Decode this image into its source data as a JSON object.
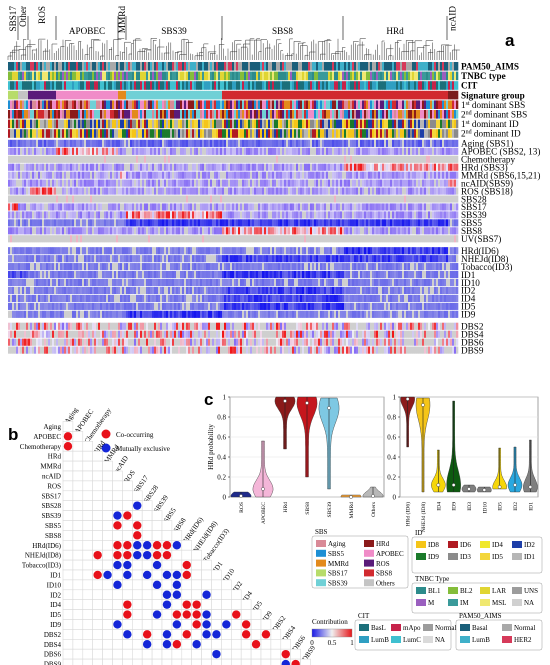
{
  "panel_letters": {
    "a": "a",
    "b": "b",
    "c": "c"
  },
  "heatmap": {
    "top_groups": [
      "SBS17",
      "Other",
      "ROS",
      "APOBEC",
      "MMRd",
      "SBS39",
      "SBS8",
      "HRd",
      "ncAID"
    ],
    "annotation_rows": [
      "PAM50_AIMS",
      "TNBC type",
      "CIT",
      "Signature group"
    ],
    "dominant_rows": [
      {
        "pre": "1",
        "sup": "st",
        "post": " dominant  SBS"
      },
      {
        "pre": "2",
        "sup": "nd",
        "post": " dominant  SBS"
      },
      {
        "pre": "1",
        "sup": "st",
        "post": " dominant  ID"
      },
      {
        "pre": "2",
        "sup": "nd",
        "post": " dominant  ID"
      }
    ],
    "sbs_rows": [
      "Aging (SBS1)",
      "APOBEC (SBS2, 13)",
      "Chemotherapy",
      "HRd (SBS3)",
      "MMRd (SBS6,15,21)",
      "ncAID(SBS9)",
      "ROS (SBS18)",
      "SBS28",
      "SBS17",
      "SBS39",
      "SBS5",
      "SBS8",
      "UV(SBS7)"
    ],
    "id_rows": [
      "HRd(ID6)",
      "NHEJd(ID8)",
      "Tobacco(ID3)",
      "ID1",
      "ID10",
      "ID2",
      "ID4",
      "ID5",
      "ID9"
    ],
    "dbs_rows": [
      "DBS2",
      "DBS4",
      "DBS6",
      "DBS9"
    ]
  },
  "panel_b": {
    "legend": {
      "co": "Co-occurring",
      "mx": "Mutually exclusive"
    },
    "colors": {
      "co": "#e8111a",
      "mx": "#1426d8"
    },
    "labels": [
      "Aging",
      "APOBEC",
      "Chemotherapy",
      "HRd",
      "MMRd",
      "ncAID",
      "ROS",
      "SBS17",
      "SBS28",
      "SBS39",
      "SBS5",
      "SBS8",
      "HRd(ID6)",
      "NHEJd(ID8)",
      "Tobacco(ID3)",
      "ID1",
      "ID10",
      "ID2",
      "ID4",
      "ID5",
      "ID9",
      "DBS2",
      "DBS4",
      "DBS6",
      "DBS9"
    ],
    "cells": [
      [
        1,
        0,
        "co"
      ],
      [
        2,
        0,
        "co"
      ],
      [
        15,
        3,
        "co"
      ],
      [
        13,
        3,
        "co"
      ],
      [
        15,
        4,
        "mx"
      ],
      [
        9,
        5,
        "mx"
      ],
      [
        10,
        5,
        "co"
      ],
      [
        12,
        5,
        "co"
      ],
      [
        13,
        5,
        "co"
      ],
      [
        14,
        5,
        "mx"
      ],
      [
        16,
        5,
        "mx"
      ],
      [
        20,
        5,
        "mx"
      ],
      [
        9,
        6,
        "co"
      ],
      [
        12,
        6,
        "co"
      ],
      [
        13,
        6,
        "co"
      ],
      [
        14,
        6,
        "mx"
      ],
      [
        15,
        6,
        "mx"
      ],
      [
        18,
        6,
        "co"
      ],
      [
        19,
        6,
        "co"
      ],
      [
        21,
        6,
        "mx"
      ],
      [
        8,
        7,
        "mx"
      ],
      [
        10,
        7,
        "co"
      ],
      [
        11,
        7,
        "co"
      ],
      [
        12,
        7,
        "mx"
      ],
      [
        13,
        7,
        "mx"
      ],
      [
        12,
        8,
        "mx"
      ],
      [
        13,
        8,
        "mx"
      ],
      [
        15,
        8,
        "mx"
      ],
      [
        21,
        8,
        "co"
      ],
      [
        22,
        8,
        "mx"
      ],
      [
        12,
        9,
        "co"
      ],
      [
        13,
        9,
        "co"
      ],
      [
        14,
        9,
        "mx"
      ],
      [
        16,
        9,
        "mx"
      ],
      [
        19,
        9,
        "mx"
      ],
      [
        12,
        10,
        "co"
      ],
      [
        13,
        10,
        "co"
      ],
      [
        15,
        10,
        "mx"
      ],
      [
        17,
        10,
        "mx"
      ],
      [
        18,
        10,
        "mx"
      ],
      [
        21,
        10,
        "mx"
      ],
      [
        22,
        10,
        "mx"
      ],
      [
        12,
        11,
        "mx"
      ],
      [
        15,
        11,
        "mx"
      ],
      [
        16,
        11,
        "mx"
      ],
      [
        17,
        11,
        "mx"
      ],
      [
        19,
        11,
        "co"
      ],
      [
        20,
        11,
        "mx"
      ],
      [
        22,
        11,
        "co"
      ],
      [
        14,
        12,
        "co"
      ],
      [
        15,
        12,
        "co"
      ],
      [
        18,
        12,
        "co"
      ],
      [
        19,
        12,
        "co"
      ],
      [
        21,
        12,
        "co"
      ],
      [
        18,
        13,
        "co"
      ],
      [
        19,
        13,
        "co"
      ],
      [
        20,
        13,
        "co"
      ],
      [
        22,
        13,
        "mx"
      ],
      [
        17,
        14,
        "mx"
      ],
      [
        19,
        14,
        "mx"
      ],
      [
        20,
        14,
        "mx"
      ],
      [
        21,
        14,
        "mx"
      ],
      [
        21,
        15,
        "mx"
      ],
      [
        23,
        15,
        "mx"
      ],
      [
        20,
        16,
        "mx"
      ],
      [
        19,
        17,
        "co"
      ],
      [
        20,
        18,
        "co"
      ],
      [
        21,
        18,
        "co"
      ],
      [
        22,
        19,
        "co"
      ],
      [
        21,
        20,
        "co"
      ],
      [
        23,
        22,
        "co"
      ],
      [
        24,
        22,
        "mx"
      ],
      [
        24,
        23,
        "co"
      ]
    ]
  },
  "chart_data": [
    {
      "type": "violin",
      "ylabel": "HRd probability",
      "ylim": [
        0,
        1
      ],
      "yticks": [
        "0",
        "0.2",
        "0.4",
        "0.6",
        "0.8",
        "1"
      ],
      "categories": [
        "ROS",
        "APOBEC",
        "HRd",
        "SBS8",
        "SBS39",
        "MMRd",
        "Others"
      ],
      "colors": [
        "#1f2a8a",
        "#f4b6d8",
        "#8b1a1a",
        "#c5161d",
        "#7ec8e3",
        "#f2a23a",
        "#b8b8b8"
      ],
      "ranges": [
        [
          0,
          0.05
        ],
        [
          0,
          0.56
        ],
        [
          0.48,
          1
        ],
        [
          0.2,
          1
        ],
        [
          0.08,
          0.99
        ],
        [
          0,
          0.02
        ],
        [
          0,
          0.1
        ]
      ],
      "medians": [
        0.01,
        0.08,
        0.96,
        0.94,
        0.89,
        0.0,
        0.01
      ]
    },
    {
      "type": "violin",
      "ylim": [
        0,
        1
      ],
      "yticks": [
        "0",
        "0.2",
        "0.4",
        "0.6",
        "0.8",
        "1"
      ],
      "categories": [
        "HRd (ID6)",
        "NHEJd (ID8)",
        "ID4",
        "ID9",
        "ID3",
        "ID10",
        "ID5",
        "ID2",
        "ID1"
      ],
      "colors": [
        "#8b1a1a",
        "#f5c518",
        "#f5d60a",
        "#0d5a10",
        "#7f7f7f",
        "#7f7f7f",
        "#f5d60a",
        "#29a8e0",
        "#7f7f7f"
      ],
      "ranges": [
        [
          0.5,
          1
        ],
        [
          0.05,
          0.99
        ],
        [
          0.05,
          0.47
        ],
        [
          0.05,
          0.96
        ],
        [
          0.05,
          0.12
        ],
        [
          0.05,
          0.1
        ],
        [
          0.08,
          0.49
        ],
        [
          0.05,
          0.5
        ],
        [
          0.05,
          0.57
        ]
      ],
      "medians": [
        0.98,
        0.92,
        0.12,
        0.12,
        0.08,
        0.07,
        0.1,
        0.12,
        0.1
      ]
    }
  ],
  "legends": {
    "sbs_title": "SBS",
    "sbs": [
      {
        "label": "Aging",
        "color": "#d98a97"
      },
      {
        "label": "HRd",
        "color": "#8b1a1a"
      },
      {
        "label": "SBS5",
        "color": "#1e8fd4"
      },
      {
        "label": "APOBEC",
        "color": "#f08cc8"
      },
      {
        "label": "MMRd",
        "color": "#e38a1c"
      },
      {
        "label": "ROS",
        "color": "#5a1b7a"
      },
      {
        "label": "SBS17",
        "color": "#b7dc6a"
      },
      {
        "label": "SBS8",
        "color": "#d12a2f"
      },
      {
        "label": "SBS39",
        "color": "#6fd0d6"
      },
      {
        "label": "Others",
        "color": "#c4c4c4"
      }
    ],
    "id_title": "ID",
    "id": [
      {
        "label": "ID8",
        "color": "#f5c518"
      },
      {
        "label": "ID6",
        "color": "#b01a22"
      },
      {
        "label": "ID4",
        "color": "#f0e82a"
      },
      {
        "label": "ID2",
        "color": "#1d3ea8"
      },
      {
        "label": "ID9",
        "color": "#1a7a2a"
      },
      {
        "label": "ID3",
        "color": "#8b8b8b"
      },
      {
        "label": "ID5",
        "color": "#f3d63a"
      },
      {
        "label": "ID1",
        "color": "#b6b6b6"
      }
    ],
    "tnbc_title": "TNBC Type",
    "tnbc": [
      {
        "label": "BL1",
        "color": "#2c8b8b"
      },
      {
        "label": "BL2",
        "color": "#84bd3a"
      },
      {
        "label": "LAR",
        "color": "#e0d533"
      },
      {
        "label": "UNS",
        "color": "#9c9c9c"
      },
      {
        "label": "M",
        "color": "#9a5fbf"
      },
      {
        "label": "IM",
        "color": "#3a9a9a"
      },
      {
        "label": "MSL",
        "color": "#f0e870"
      },
      {
        "label": "NA",
        "color": "#d0d0d0"
      }
    ],
    "pam_title": "PAM50_AIMS",
    "pam": [
      {
        "label": "Basal",
        "color": "#1a5f7a"
      },
      {
        "label": "Normal",
        "color": "#a9a9a9"
      },
      {
        "label": "LumB",
        "color": "#3fb0c9"
      },
      {
        "label": "HER2",
        "color": "#d63a5a"
      }
    ],
    "cit_title": "CIT",
    "cit": [
      {
        "label": "BasL",
        "color": "#1b6f7a"
      },
      {
        "label": "mApo",
        "color": "#c6224a"
      },
      {
        "label": "Normal",
        "color": "#9c9c9c"
      },
      {
        "label": "LumB",
        "color": "#2f9fc2"
      },
      {
        "label": "LumC",
        "color": "#3fc0d0"
      },
      {
        "label": "NA",
        "color": "#dadada"
      }
    ],
    "contribution": {
      "title": "Contribution",
      "ticks": [
        "0",
        "0.5",
        "1"
      ]
    }
  }
}
